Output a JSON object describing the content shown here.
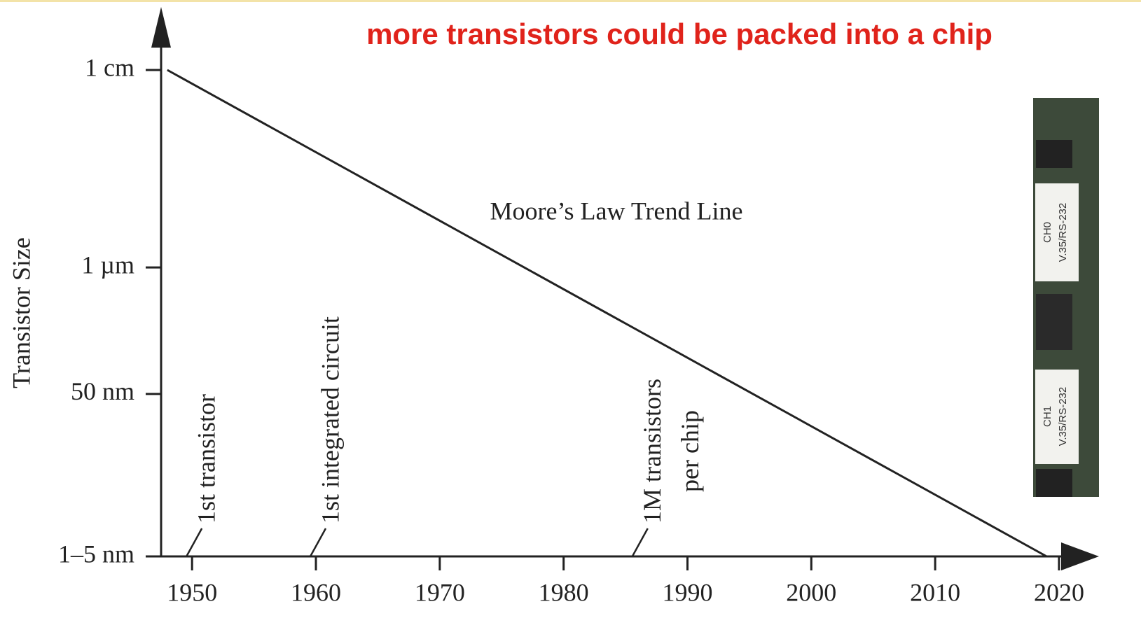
{
  "chart_data": {
    "type": "line",
    "title": "more transistors could be packed into a chip",
    "y_label": "Transistor Size",
    "x": [
      1948,
      2019
    ],
    "series": [
      {
        "name": "Moore’s Law Trend Line",
        "color": "#222222",
        "values": [
          100,
          0
        ]
      }
    ],
    "xlim": [
      1947.5,
      2023
    ],
    "xticks": [
      1950,
      1960,
      1970,
      1980,
      1990,
      2000,
      2010,
      2020
    ],
    "ylim": [
      0,
      100
    ],
    "yticks": [
      {
        "value": 0,
        "label": "1–5 nm"
      },
      {
        "value": 33.4,
        "label": "50 nm"
      },
      {
        "value": 59.4,
        "label": "1 µm"
      },
      {
        "value": 100,
        "label": "1 cm"
      }
    ],
    "annotations": [
      {
        "x": 1950,
        "lines": [
          "1st transistor"
        ]
      },
      {
        "x": 1960,
        "lines": [
          "1st integrated circuit"
        ]
      },
      {
        "x": 1986,
        "lines": [
          "1M transistors",
          "per chip"
        ]
      }
    ]
  },
  "photo": {
    "labels": [
      [
        "CH0",
        "V.35/RS-232"
      ],
      [
        "CH1",
        "V.35/RS-232"
      ]
    ]
  }
}
